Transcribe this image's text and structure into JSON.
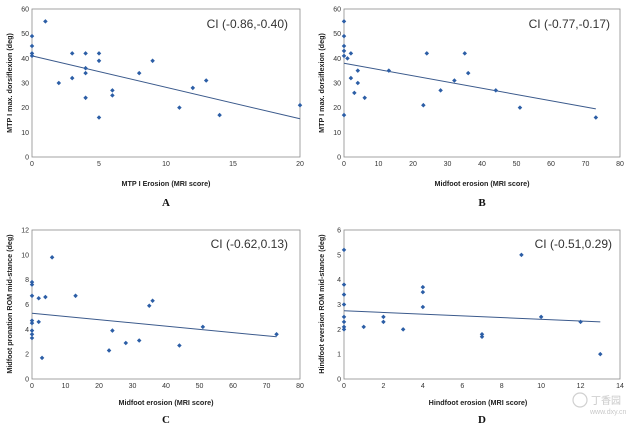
{
  "watermark": "丁香园",
  "watermark_sub": "www.dxy.cn",
  "chart_data": [
    {
      "type": "scatter",
      "panel_label": "A",
      "annotation": "CI (-0.86,-0.40)",
      "xlabel": "MTP I Erosion (MRI score)",
      "ylabel": "MTP I max. dorsiflexion (deg)",
      "xlim": [
        0,
        20
      ],
      "ylim": [
        0,
        60
      ],
      "xticks": [
        0,
        5,
        10,
        15,
        20
      ],
      "yticks": [
        0,
        10,
        20,
        30,
        40,
        50,
        60
      ],
      "grid": false,
      "points": [
        [
          0,
          49
        ],
        [
          0,
          45
        ],
        [
          0,
          42
        ],
        [
          0,
          41
        ],
        [
          1,
          55
        ],
        [
          2,
          30
        ],
        [
          3,
          42
        ],
        [
          3,
          32
        ],
        [
          4,
          42
        ],
        [
          4,
          36
        ],
        [
          4,
          34
        ],
        [
          4,
          24
        ],
        [
          5,
          42
        ],
        [
          5,
          39
        ],
        [
          5,
          16
        ],
        [
          6,
          27
        ],
        [
          6,
          25
        ],
        [
          8,
          34
        ],
        [
          9,
          39
        ],
        [
          11,
          20
        ],
        [
          12,
          28
        ],
        [
          13,
          31
        ],
        [
          14,
          17
        ],
        [
          20,
          21
        ]
      ],
      "trendline": [
        [
          0,
          41
        ],
        [
          20,
          15.5
        ]
      ]
    },
    {
      "type": "scatter",
      "panel_label": "B",
      "annotation": "CI (-0.77,-0.17)",
      "xlabel": "Midfoot erosion (MRI score)",
      "ylabel": "MTP I max. dorsiflexion (deg)",
      "xlim": [
        0,
        80
      ],
      "ylim": [
        0,
        60
      ],
      "xticks": [
        0,
        10,
        20,
        30,
        40,
        50,
        60,
        70,
        80
      ],
      "yticks": [
        0,
        10,
        20,
        30,
        40,
        50,
        60
      ],
      "grid": false,
      "points": [
        [
          0,
          55
        ],
        [
          0,
          49
        ],
        [
          0,
          45
        ],
        [
          0,
          43
        ],
        [
          0,
          41
        ],
        [
          0,
          17
        ],
        [
          1,
          40
        ],
        [
          2,
          42
        ],
        [
          2,
          32
        ],
        [
          3,
          26
        ],
        [
          4,
          35
        ],
        [
          4,
          30
        ],
        [
          6,
          24
        ],
        [
          13,
          35
        ],
        [
          23,
          21
        ],
        [
          24,
          42
        ],
        [
          28,
          27
        ],
        [
          32,
          31
        ],
        [
          35,
          42
        ],
        [
          36,
          34
        ],
        [
          44,
          27
        ],
        [
          51,
          20
        ],
        [
          73,
          16
        ]
      ],
      "trendline": [
        [
          0,
          38
        ],
        [
          73,
          19.5
        ]
      ]
    },
    {
      "type": "scatter",
      "panel_label": "C",
      "annotation": "CI (-0.62,0.13)",
      "xlabel": "Midfoot erosion (MRI score)",
      "ylabel": "Midfoot pronation ROM mid-stance (deg)",
      "xlim": [
        0,
        80
      ],
      "ylim": [
        0,
        12
      ],
      "xticks": [
        0,
        10,
        20,
        30,
        40,
        50,
        60,
        70,
        80
      ],
      "yticks": [
        0,
        2,
        4,
        6,
        8,
        10,
        12
      ],
      "grid": false,
      "points": [
        [
          0,
          7.8
        ],
        [
          0,
          7.6
        ],
        [
          0,
          6.7
        ],
        [
          0,
          4.7
        ],
        [
          0,
          4.5
        ],
        [
          0,
          3.9
        ],
        [
          0,
          3.6
        ],
        [
          0,
          3.3
        ],
        [
          2,
          6.5
        ],
        [
          2,
          4.6
        ],
        [
          3,
          1.7
        ],
        [
          4,
          6.6
        ],
        [
          6,
          9.8
        ],
        [
          13,
          6.7
        ],
        [
          23,
          2.3
        ],
        [
          24,
          3.9
        ],
        [
          28,
          2.9
        ],
        [
          32,
          3.1
        ],
        [
          35,
          5.9
        ],
        [
          36,
          6.3
        ],
        [
          44,
          2.7
        ],
        [
          51,
          4.2
        ],
        [
          73,
          3.6
        ]
      ],
      "trendline": [
        [
          0,
          5.3
        ],
        [
          73,
          3.4
        ]
      ]
    },
    {
      "type": "scatter",
      "panel_label": "D",
      "annotation": "CI (-0.51,0.29)",
      "xlabel": "Hindfoot erosion (MRI score)",
      "ylabel": "Hindfoot eversion ROM mid-stance (deg)",
      "xlim": [
        0,
        14
      ],
      "ylim": [
        0,
        6
      ],
      "xticks": [
        0,
        2,
        4,
        6,
        8,
        10,
        12,
        14
      ],
      "yticks": [
        0,
        1,
        2,
        3,
        4,
        5,
        6
      ],
      "grid": false,
      "points": [
        [
          0,
          5.2
        ],
        [
          0,
          3.8
        ],
        [
          0,
          3.4
        ],
        [
          0,
          3.0
        ],
        [
          0,
          2.5
        ],
        [
          0,
          2.3
        ],
        [
          0,
          2.1
        ],
        [
          0,
          2.0
        ],
        [
          1,
          2.1
        ],
        [
          2,
          2.5
        ],
        [
          2,
          2.3
        ],
        [
          3,
          2.0
        ],
        [
          4,
          3.7
        ],
        [
          4,
          3.5
        ],
        [
          4,
          2.9
        ],
        [
          7,
          1.8
        ],
        [
          7,
          1.7
        ],
        [
          9,
          5.0
        ],
        [
          10,
          2.5
        ],
        [
          12,
          2.3
        ],
        [
          13,
          1.0
        ]
      ],
      "trendline": [
        [
          0,
          2.75
        ],
        [
          13,
          2.3
        ]
      ]
    }
  ]
}
